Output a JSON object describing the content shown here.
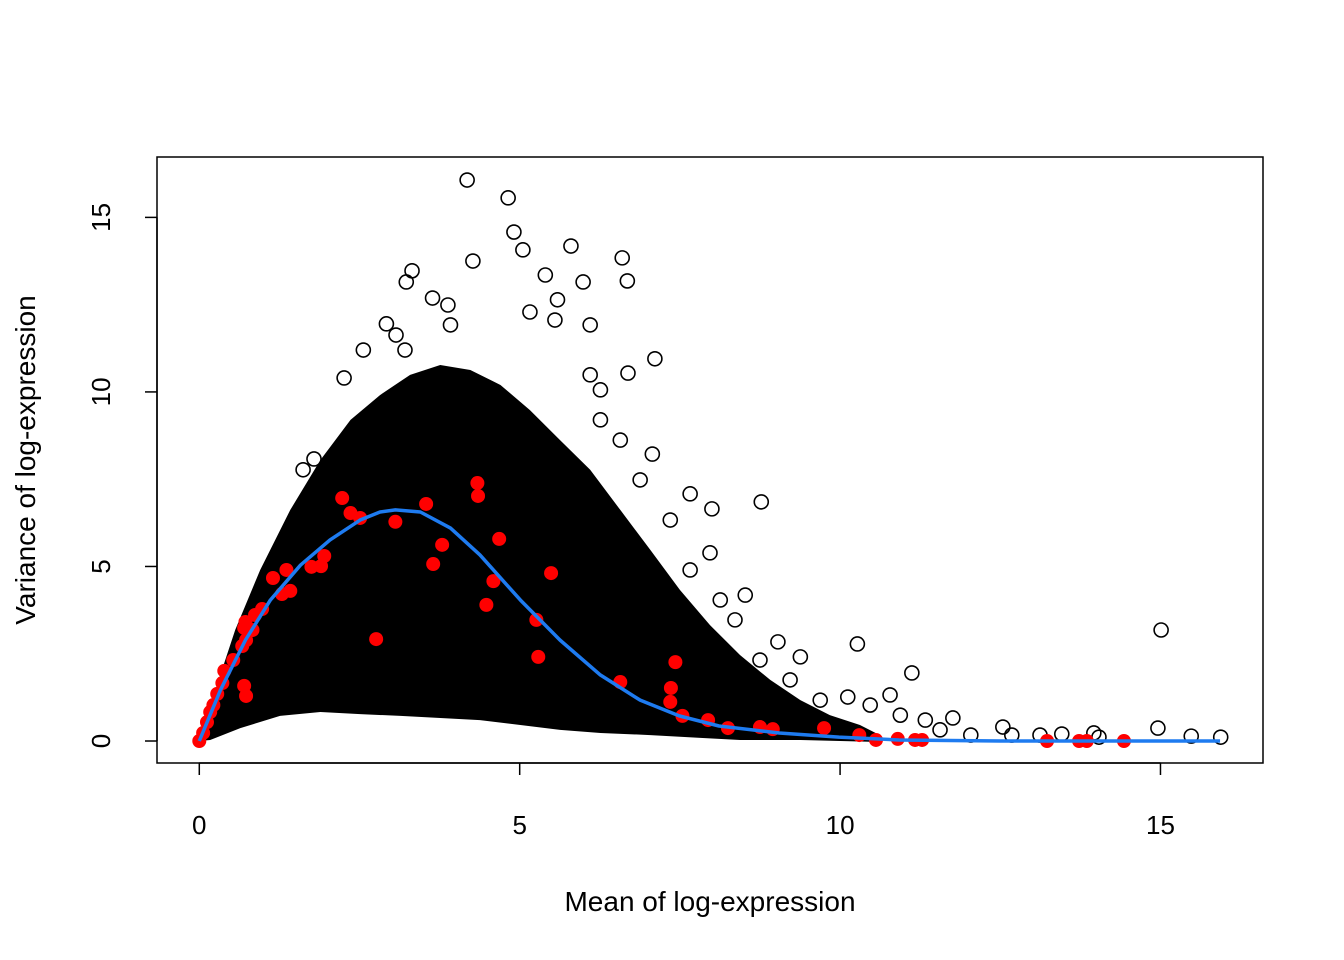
{
  "chart_data": {
    "type": "scatter",
    "title": "",
    "xlabel": "Mean of log-expression",
    "ylabel": "Variance of log-expression",
    "xlim": [
      -0.66,
      16.6
    ],
    "ylim": [
      -0.63,
      16.73
    ],
    "xticks": [
      0,
      5,
      10,
      15
    ],
    "yticks": [
      0,
      5,
      10,
      15
    ],
    "xtick_labels": [
      "0",
      "5",
      "10",
      "15"
    ],
    "ytick_labels": [
      "0",
      "5",
      "10",
      "15"
    ],
    "grid": false,
    "colors": {
      "points": "#000000",
      "highlighted": "#ff0000",
      "trend": "#1e7bf0"
    },
    "dense_region_outline": [
      [
        0,
        0
      ],
      [
        0.25,
        1.46
      ],
      [
        0.56,
        3.18
      ],
      [
        0.95,
        4.9
      ],
      [
        1.42,
        6.62
      ],
      [
        1.89,
        8.05
      ],
      [
        2.36,
        9.2
      ],
      [
        2.82,
        9.91
      ],
      [
        3.29,
        10.49
      ],
      [
        3.76,
        10.77
      ],
      [
        4.23,
        10.63
      ],
      [
        4.7,
        10.2
      ],
      [
        5.16,
        9.48
      ],
      [
        5.63,
        8.62
      ],
      [
        6.1,
        7.77
      ],
      [
        6.57,
        6.62
      ],
      [
        7.04,
        5.47
      ],
      [
        7.5,
        4.33
      ],
      [
        7.97,
        3.32
      ],
      [
        8.44,
        2.46
      ],
      [
        8.91,
        1.75
      ],
      [
        9.38,
        1.17
      ],
      [
        9.84,
        0.74
      ],
      [
        10.31,
        0.46
      ],
      [
        10.62,
        0.17
      ],
      [
        10.62,
        -0.03
      ],
      [
        9.38,
        0.03
      ],
      [
        8.44,
        0.03
      ],
      [
        7.82,
        0.09
      ],
      [
        7.04,
        0.17
      ],
      [
        6.26,
        0.23
      ],
      [
        5.63,
        0.32
      ],
      [
        5.01,
        0.46
      ],
      [
        4.38,
        0.6
      ],
      [
        3.76,
        0.66
      ],
      [
        3.14,
        0.72
      ],
      [
        2.51,
        0.77
      ],
      [
        1.89,
        0.83
      ],
      [
        1.26,
        0.72
      ],
      [
        0.64,
        0.37
      ],
      [
        0.17,
        0.03
      ]
    ],
    "points": [
      [
        4.18,
        16.07
      ],
      [
        4.82,
        15.56
      ],
      [
        4.91,
        14.58
      ],
      [
        5.8,
        14.18
      ],
      [
        6.6,
        13.84
      ],
      [
        6.68,
        13.18
      ],
      [
        4.27,
        13.75
      ],
      [
        3.32,
        13.47
      ],
      [
        3.23,
        13.15
      ],
      [
        5.05,
        14.07
      ],
      [
        5.4,
        13.35
      ],
      [
        2.92,
        11.95
      ],
      [
        7.11,
        10.95
      ],
      [
        6.69,
        10.54
      ],
      [
        7.07,
        8.22
      ],
      [
        8.0,
        6.65
      ],
      [
        8.77,
        6.85
      ],
      [
        7.66,
        7.08
      ],
      [
        7.97,
        5.39
      ],
      [
        8.52,
        4.18
      ],
      [
        9.03,
        2.84
      ],
      [
        9.38,
        2.41
      ],
      [
        10.27,
        2.78
      ],
      [
        11.12,
        1.95
      ],
      [
        10.78,
        1.32
      ],
      [
        10.12,
        1.26
      ],
      [
        11.76,
        0.66
      ],
      [
        12.54,
        0.4
      ],
      [
        13.46,
        0.2
      ],
      [
        13.96,
        0.23
      ],
      [
        14.04,
        0.11
      ],
      [
        14.96,
        0.37
      ],
      [
        15.01,
        3.18
      ],
      [
        15.48,
        0.14
      ],
      [
        15.94,
        0.11
      ],
      [
        2.26,
        10.4
      ],
      [
        6.26,
        10.06
      ],
      [
        6.1,
        10.49
      ],
      [
        5.99,
        13.15
      ],
      [
        5.59,
        12.64
      ],
      [
        6.1,
        11.92
      ],
      [
        5.55,
        12.06
      ],
      [
        5.16,
        12.29
      ],
      [
        3.64,
        12.69
      ],
      [
        3.88,
        12.49
      ],
      [
        3.92,
        11.92
      ],
      [
        3.07,
        11.63
      ],
      [
        3.21,
        11.2
      ],
      [
        2.56,
        11.2
      ],
      [
        1.79,
        8.08
      ],
      [
        1.62,
        7.77
      ],
      [
        6.26,
        9.2
      ],
      [
        6.57,
        8.62
      ],
      [
        6.88,
        7.48
      ],
      [
        7.35,
        6.33
      ],
      [
        7.66,
        4.9
      ],
      [
        8.13,
        4.04
      ],
      [
        8.36,
        3.47
      ],
      [
        8.75,
        2.32
      ],
      [
        9.22,
        1.75
      ],
      [
        9.69,
        1.17
      ],
      [
        10.47,
        1.03
      ],
      [
        10.94,
        0.74
      ],
      [
        11.33,
        0.6
      ],
      [
        11.56,
        0.32
      ],
      [
        12.04,
        0.17
      ],
      [
        12.68,
        0.17
      ],
      [
        13.12,
        0.17
      ]
    ],
    "highlighted_points": [
      [
        0,
        0
      ],
      [
        0.06,
        0.23
      ],
      [
        0.12,
        0.54
      ],
      [
        0.17,
        0.83
      ],
      [
        0.22,
        1.03
      ],
      [
        0.28,
        1.35
      ],
      [
        0.36,
        1.66
      ],
      [
        0.39,
        2.01
      ],
      [
        0.53,
        2.32
      ],
      [
        0.67,
        2.72
      ],
      [
        0.73,
        2.89
      ],
      [
        0.7,
        3.24
      ],
      [
        0.83,
        3.18
      ],
      [
        0.72,
        3.41
      ],
      [
        0.87,
        3.61
      ],
      [
        0.98,
        3.78
      ],
      [
        0.7,
        1.58
      ],
      [
        0.73,
        1.29
      ],
      [
        1.15,
        4.67
      ],
      [
        1.36,
        4.9
      ],
      [
        1.29,
        4.21
      ],
      [
        1.42,
        4.3
      ],
      [
        1.75,
        4.99
      ],
      [
        1.9,
        5.01
      ],
      [
        1.95,
        5.3
      ],
      [
        2.23,
        6.96
      ],
      [
        2.36,
        6.53
      ],
      [
        2.51,
        6.39
      ],
      [
        3.06,
        6.28
      ],
      [
        3.54,
        6.79
      ],
      [
        3.79,
        5.62
      ],
      [
        3.65,
        5.07
      ],
      [
        4.34,
        7.39
      ],
      [
        4.35,
        7.02
      ],
      [
        4.68,
        5.79
      ],
      [
        4.48,
        3.9
      ],
      [
        4.59,
        4.58
      ],
      [
        5.26,
        3.47
      ],
      [
        5.29,
        2.41
      ],
      [
        5.49,
        4.81
      ],
      [
        2.76,
        2.92
      ],
      [
        6.57,
        1.69
      ],
      [
        7.43,
        2.26
      ],
      [
        7.36,
        1.52
      ],
      [
        7.35,
        1.12
      ],
      [
        7.54,
        0.72
      ],
      [
        7.94,
        0.6
      ],
      [
        8.25,
        0.37
      ],
      [
        8.75,
        0.4
      ],
      [
        8.95,
        0.34
      ],
      [
        9.75,
        0.37
      ],
      [
        10.3,
        0.17
      ],
      [
        10.56,
        0.03
      ],
      [
        10.9,
        0.06
      ],
      [
        11.17,
        0.03
      ],
      [
        11.28,
        0.03
      ],
      [
        13.23,
        0
      ],
      [
        13.73,
        0
      ],
      [
        13.85,
        0
      ],
      [
        14.43,
        0
      ]
    ],
    "trend_line": [
      [
        0,
        0
      ],
      [
        0.33,
        1.46
      ],
      [
        0.72,
        2.89
      ],
      [
        1.11,
        4.04
      ],
      [
        1.58,
        5.04
      ],
      [
        2.04,
        5.76
      ],
      [
        2.51,
        6.33
      ],
      [
        2.82,
        6.56
      ],
      [
        3.06,
        6.62
      ],
      [
        3.45,
        6.56
      ],
      [
        3.92,
        6.1
      ],
      [
        4.38,
        5.33
      ],
      [
        5.01,
        4.04
      ],
      [
        5.63,
        2.89
      ],
      [
        6.26,
        1.89
      ],
      [
        6.88,
        1.17
      ],
      [
        7.49,
        0.72
      ],
      [
        8.11,
        0.43
      ],
      [
        9.05,
        0.23
      ],
      [
        9.98,
        0.11
      ],
      [
        10.92,
        0.03
      ],
      [
        12.5,
        0
      ],
      [
        15.93,
        0
      ]
    ]
  }
}
